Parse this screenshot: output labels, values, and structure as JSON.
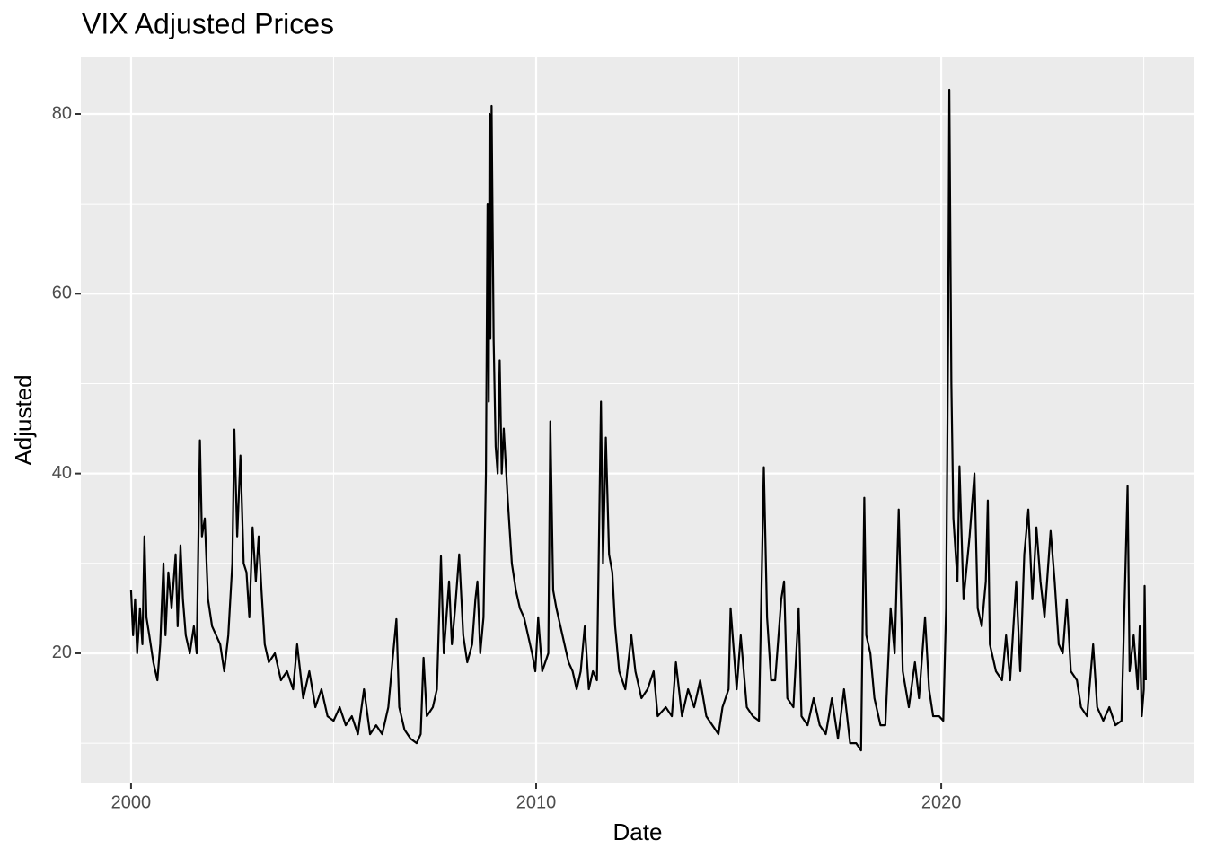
{
  "chart_data": {
    "type": "line",
    "title": "VIX Adjusted Prices",
    "x_label": "Date",
    "y_label": "Adjusted",
    "xlim": [
      1998.76,
      2026.25
    ],
    "xticks": [
      2000,
      2010,
      2020
    ],
    "xminor": [
      2005,
      2015,
      2025
    ],
    "ylim": [
      5.52,
      86.39
    ],
    "yticks": [
      20,
      40,
      60,
      80
    ],
    "yminor": [
      10,
      30,
      50,
      70
    ],
    "grid": true,
    "panel_color": "#ebebeb",
    "grid_color": "#ffffff",
    "series": [
      {
        "name": "Adjusted",
        "color": "#000000",
        "x": [
          2000.0,
          2000.05,
          2000.1,
          2000.15,
          2000.22,
          2000.28,
          2000.33,
          2000.38,
          2000.45,
          2000.55,
          2000.65,
          2000.72,
          2000.8,
          2000.85,
          2000.92,
          2001.0,
          2001.1,
          2001.15,
          2001.22,
          2001.28,
          2001.35,
          2001.45,
          2001.55,
          2001.62,
          2001.7,
          2001.75,
          2001.82,
          2001.9,
          2002.0,
          2002.1,
          2002.2,
          2002.3,
          2002.4,
          2002.5,
          2002.55,
          2002.62,
          2002.7,
          2002.78,
          2002.85,
          2002.92,
          2003.0,
          2003.08,
          2003.15,
          2003.22,
          2003.3,
          2003.4,
          2003.55,
          2003.7,
          2003.85,
          2004.0,
          2004.1,
          2004.25,
          2004.4,
          2004.55,
          2004.7,
          2004.85,
          2005.0,
          2005.15,
          2005.3,
          2005.45,
          2005.6,
          2005.75,
          2005.9,
          2006.05,
          2006.2,
          2006.35,
          2006.45,
          2006.55,
          2006.62,
          2006.75,
          2006.9,
          2007.05,
          2007.15,
          2007.22,
          2007.3,
          2007.45,
          2007.55,
          2007.65,
          2007.72,
          2007.85,
          2007.92,
          2008.0,
          2008.1,
          2008.2,
          2008.3,
          2008.42,
          2008.5,
          2008.55,
          2008.62,
          2008.7,
          2008.76,
          2008.8,
          2008.83,
          2008.85,
          2008.87,
          2008.9,
          2008.95,
          2009.0,
          2009.05,
          2009.1,
          2009.15,
          2009.2,
          2009.3,
          2009.4,
          2009.5,
          2009.6,
          2009.7,
          2009.8,
          2009.9,
          2009.98,
          2010.05,
          2010.15,
          2010.3,
          2010.35,
          2010.42,
          2010.5,
          2010.6,
          2010.7,
          2010.8,
          2010.9,
          2011.0,
          2011.1,
          2011.2,
          2011.3,
          2011.4,
          2011.5,
          2011.6,
          2011.65,
          2011.72,
          2011.8,
          2011.88,
          2011.95,
          2012.05,
          2012.2,
          2012.35,
          2012.45,
          2012.6,
          2012.75,
          2012.9,
          2013.0,
          2013.2,
          2013.35,
          2013.45,
          2013.6,
          2013.75,
          2013.9,
          2014.05,
          2014.2,
          2014.35,
          2014.5,
          2014.6,
          2014.75,
          2014.8,
          2014.95,
          2015.05,
          2015.2,
          2015.35,
          2015.5,
          2015.62,
          2015.7,
          2015.8,
          2015.9,
          2016.05,
          2016.12,
          2016.2,
          2016.35,
          2016.48,
          2016.55,
          2016.7,
          2016.85,
          2017.0,
          2017.15,
          2017.3,
          2017.45,
          2017.6,
          2017.75,
          2017.9,
          2018.02,
          2018.1,
          2018.15,
          2018.25,
          2018.35,
          2018.5,
          2018.62,
          2018.75,
          2018.85,
          2018.95,
          2019.05,
          2019.2,
          2019.35,
          2019.45,
          2019.6,
          2019.7,
          2019.8,
          2019.95,
          2020.05,
          2020.12,
          2020.17,
          2020.2,
          2020.25,
          2020.3,
          2020.4,
          2020.45,
          2020.55,
          2020.7,
          2020.82,
          2020.9,
          2021.0,
          2021.1,
          2021.15,
          2021.2,
          2021.35,
          2021.5,
          2021.6,
          2021.7,
          2021.85,
          2021.95,
          2022.05,
          2022.15,
          2022.25,
          2022.35,
          2022.45,
          2022.55,
          2022.7,
          2022.8,
          2022.9,
          2023.0,
          2023.1,
          2023.2,
          2023.35,
          2023.45,
          2023.6,
          2023.75,
          2023.85,
          2024.0,
          2024.15,
          2024.3,
          2024.45,
          2024.6,
          2024.65,
          2024.75,
          2024.85,
          2024.9,
          2024.95,
          2025.0,
          2025.02,
          2025.05
        ],
        "values": [
          27,
          22,
          26,
          20,
          25,
          21,
          33,
          24,
          22,
          19,
          17,
          21,
          30,
          22,
          29,
          25,
          31,
          23,
          32,
          26,
          22,
          20,
          23,
          20,
          43.7,
          33,
          35,
          26,
          23,
          22,
          21,
          18,
          22,
          30,
          44.9,
          33,
          42,
          30,
          29,
          24,
          34,
          28,
          33,
          27,
          21,
          19,
          20,
          17,
          18,
          16,
          21,
          15,
          18,
          14,
          16,
          13,
          12.5,
          14,
          12,
          13,
          11,
          16,
          11,
          12,
          11,
          14,
          19,
          23.8,
          14,
          11.5,
          10.5,
          10,
          11,
          19.5,
          13,
          14,
          16,
          30.8,
          20,
          28,
          21,
          25,
          31,
          22,
          19,
          21,
          26,
          28,
          20,
          24,
          40,
          70,
          48,
          80,
          55,
          80.9,
          55,
          43,
          40,
          52.6,
          40,
          45,
          37,
          30,
          27,
          25,
          24,
          22,
          20,
          18,
          24,
          18,
          20,
          45.8,
          27,
          25,
          23,
          21,
          19,
          18,
          16,
          18,
          23,
          16,
          18,
          17,
          48,
          30,
          44,
          31,
          29,
          23,
          18,
          16,
          22,
          18,
          15,
          16,
          18,
          13,
          14,
          13,
          19,
          13,
          16,
          14,
          17,
          13,
          12,
          11,
          14,
          16,
          25,
          16,
          22,
          14,
          13,
          12.5,
          40.7,
          24,
          17,
          17,
          26,
          28,
          15,
          14,
          25,
          13,
          12,
          15,
          12,
          11,
          15,
          10.5,
          16,
          10,
          10,
          9.2,
          37.3,
          22,
          20,
          15,
          12,
          12,
          25,
          20,
          36,
          18,
          14,
          19,
          15,
          24,
          16,
          13,
          13,
          12.5,
          25,
          55,
          82.7,
          50,
          35,
          28,
          40.8,
          26,
          33,
          40,
          25,
          23,
          28,
          37,
          21,
          18,
          17,
          22,
          17,
          28,
          18,
          31,
          36,
          26,
          34,
          28,
          24,
          33.6,
          28,
          21,
          20,
          26,
          18,
          17,
          14,
          13,
          21,
          14,
          12.5,
          14,
          12,
          12.5,
          38.6,
          18,
          22,
          16,
          23,
          13,
          16,
          27.5,
          17
        ]
      }
    ]
  }
}
